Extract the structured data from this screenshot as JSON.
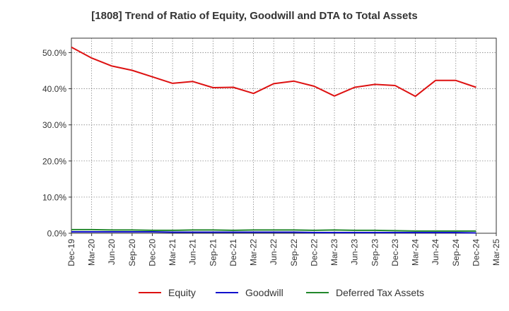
{
  "chart_data": {
    "type": "line",
    "title": "[1808]  Trend of Ratio of Equity, Goodwill and DTA to Total Assets",
    "xlabel": "",
    "ylabel": "",
    "ylim": [
      0,
      54
    ],
    "yticks": [
      0,
      10,
      20,
      30,
      40,
      50
    ],
    "ytick_labels": [
      "0.0%",
      "10.0%",
      "20.0%",
      "30.0%",
      "40.0%",
      "50.0%"
    ],
    "grid": true,
    "legend_position": "bottom-center",
    "categories": [
      "Dec-19",
      "Mar-20",
      "Jun-20",
      "Sep-20",
      "Dec-20",
      "Mar-21",
      "Jun-21",
      "Sep-21",
      "Dec-21",
      "Mar-22",
      "Jun-22",
      "Sep-22",
      "Dec-22",
      "Mar-23",
      "Jun-23",
      "Sep-23",
      "Dec-23",
      "Mar-24",
      "Jun-24",
      "Sep-24",
      "Dec-24",
      "Mar-25"
    ],
    "series": [
      {
        "name": "Equity",
        "color": "#dd1111",
        "values": [
          51.5,
          48.5,
          46.3,
          45.1,
          43.3,
          41.5,
          42.0,
          40.3,
          40.4,
          38.7,
          41.4,
          42.1,
          40.7,
          38.0,
          40.4,
          41.2,
          40.9,
          37.9,
          42.3,
          42.3,
          40.4,
          null
        ]
      },
      {
        "name": "Goodwill",
        "color": "#1111cc",
        "values": [
          0.4,
          0.4,
          0.4,
          0.4,
          0.4,
          0.3,
          0.3,
          0.3,
          0.3,
          0.3,
          0.3,
          0.3,
          0.2,
          0.2,
          0.2,
          0.2,
          0.2,
          0.2,
          0.2,
          0.2,
          0.1,
          null
        ]
      },
      {
        "name": "Deferred Tax Assets",
        "color": "#22882b",
        "values": [
          1.0,
          1.0,
          0.9,
          0.9,
          0.8,
          0.8,
          0.9,
          0.9,
          0.8,
          0.9,
          0.9,
          0.9,
          0.8,
          0.9,
          0.8,
          0.8,
          0.7,
          0.6,
          0.6,
          0.6,
          0.6,
          null
        ]
      }
    ]
  }
}
